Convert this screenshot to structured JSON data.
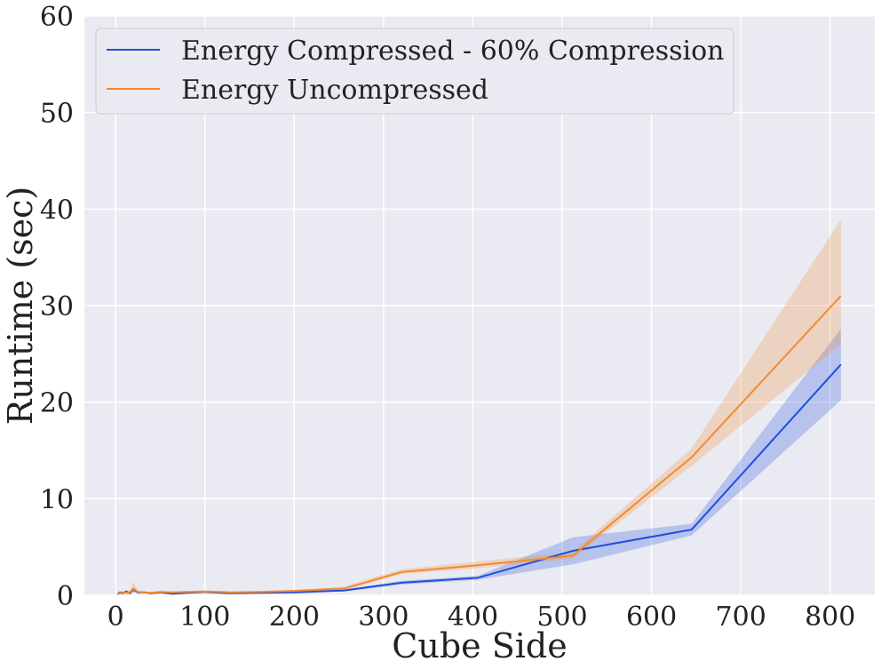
{
  "chart_data": {
    "type": "line",
    "xlabel": "Cube Side",
    "ylabel": "Runtime (sec)",
    "xlim": [
      -35,
      850
    ],
    "ylim": [
      0,
      60
    ],
    "xticks": [
      0,
      100,
      200,
      300,
      400,
      500,
      600,
      700,
      800
    ],
    "yticks": [
      0,
      10,
      20,
      30,
      40,
      50,
      60
    ],
    "grid": true,
    "legend_position": "top-left",
    "colors": {
      "background": "#eaeaf2",
      "grid": "#ffffff"
    },
    "series": [
      {
        "name": "Energy Compressed - 60% Compression",
        "color": "#1f4fdf",
        "x": [
          2,
          5,
          8,
          12,
          16,
          20,
          25,
          32,
          40,
          50,
          64,
          80,
          100,
          128,
          160,
          200,
          256,
          320,
          405,
          512,
          645,
          812
        ],
        "y": [
          0.1,
          0.3,
          0.2,
          0.4,
          0.2,
          0.6,
          0.3,
          0.3,
          0.2,
          0.3,
          0.15,
          0.25,
          0.35,
          0.2,
          0.25,
          0.3,
          0.5,
          1.3,
          1.8,
          4.6,
          6.8,
          23.9
        ],
        "lower": [
          0.05,
          0.2,
          0.1,
          0.3,
          0.1,
          0.4,
          0.2,
          0.2,
          0.1,
          0.2,
          0.1,
          0.2,
          0.25,
          0.15,
          0.2,
          0.2,
          0.4,
          1.1,
          1.6,
          3.2,
          6.2,
          20.2
        ],
        "upper": [
          0.2,
          0.4,
          0.3,
          0.5,
          0.3,
          0.8,
          0.4,
          0.4,
          0.3,
          0.4,
          0.25,
          0.35,
          0.45,
          0.3,
          0.35,
          0.4,
          0.6,
          1.5,
          2.0,
          6.0,
          7.4,
          27.6
        ]
      },
      {
        "name": "Energy Uncompressed",
        "color": "#f58a2c",
        "x": [
          2,
          5,
          8,
          12,
          16,
          20,
          25,
          32,
          40,
          50,
          64,
          80,
          100,
          128,
          160,
          200,
          256,
          320,
          405,
          512,
          645,
          812
        ],
        "y": [
          0.15,
          0.2,
          0.3,
          0.25,
          0.3,
          0.7,
          0.35,
          0.3,
          0.25,
          0.35,
          0.3,
          0.35,
          0.4,
          0.3,
          0.35,
          0.45,
          0.7,
          2.4,
          3.1,
          4.1,
          14.3,
          31.0
        ],
        "lower": [
          0.05,
          0.1,
          0.2,
          0.15,
          0.2,
          0.3,
          0.25,
          0.2,
          0.15,
          0.25,
          0.2,
          0.25,
          0.3,
          0.2,
          0.25,
          0.35,
          0.5,
          2.2,
          2.8,
          3.8,
          13.4,
          26.0
        ],
        "upper": [
          0.25,
          0.3,
          0.4,
          0.35,
          0.5,
          1.4,
          0.5,
          0.4,
          0.35,
          0.45,
          0.4,
          0.45,
          0.5,
          0.4,
          0.45,
          0.55,
          0.9,
          2.7,
          3.5,
          4.5,
          15.2,
          38.9
        ]
      }
    ]
  }
}
